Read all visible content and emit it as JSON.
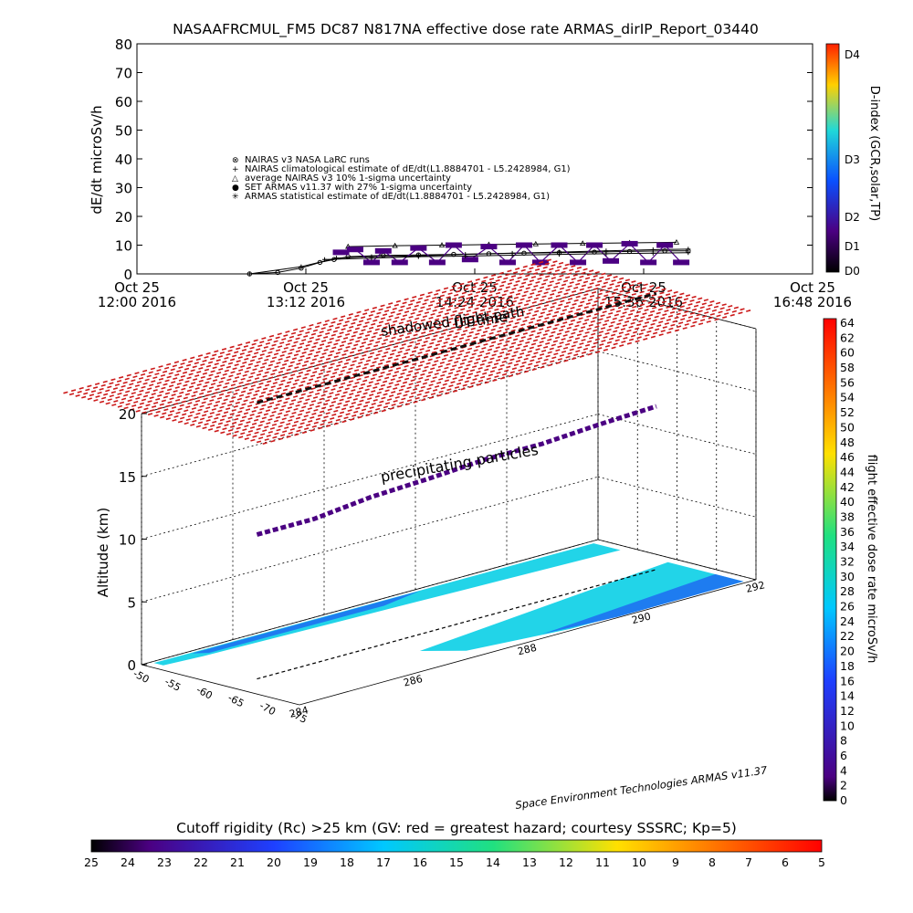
{
  "title": "NASAAFRCMUL_FM5 DC87 N817NA effective dose rate ARMAS_dirIP_Report_03440",
  "top_panel": {
    "ylabel": "dE/dt microSv/h",
    "right_label": "D-index (GCR,solar,TP)",
    "dindex_labels": [
      "D4",
      "D3",
      "D2",
      "D1",
      "D0"
    ],
    "legend": [
      {
        "symbol": "⊗",
        "text": "NAIRAS v3 NASA LaRC runs"
      },
      {
        "symbol": "+",
        "text": "NAIRAS climatological estimate of dE/dt(L1.8884701 - L5.2428984, G1)"
      },
      {
        "symbol": "△",
        "text": "average NAIRAS v3 10% 1-sigma uncertainty"
      },
      {
        "symbol": "●",
        "text": "SET ARMAS v11.37 with 27% 1-sigma uncertainty"
      },
      {
        "symbol": "✳",
        "text": "ARMAS statistical estimate of dE/dt(L1.8884701 - L5.2428984, G1)"
      }
    ],
    "time_ticks": [
      {
        "line1": "Oct 25",
        "line2": "12:00 2016"
      },
      {
        "line1": "Oct 25",
        "line2": "13:12 2016"
      },
      {
        "line1": "Oct 25",
        "line2": "14:24 2016"
      },
      {
        "line1": "Oct 25",
        "line2": "15:36 2016"
      },
      {
        "line1": "Oct 25",
        "line2": "16:48 2016"
      }
    ]
  },
  "bottom_panel": {
    "zlabel": "Altitude (km)",
    "right_label": "flight effective dose rate microSv/h",
    "annotations": {
      "shadowed": "shadowed flight path",
      "uttime": "UT time",
      "precip": "precipitating particles",
      "credit": "Space Environment Technologies ARMAS v11.37"
    },
    "cutoff_label": "Cutoff rigidity (Rc) >25 km (GV: red = greatest hazard; courtesy SSSRC; Kp=5)"
  },
  "chart_data": [
    {
      "type": "line",
      "title": "NASAAFRCMUL_FM5 DC87 N817NA effective dose rate ARMAS_dirIP_Report_03440",
      "ylabel": "dE/dt microSv/h",
      "right_ylabel": "D-index (GCR,solar,TP)",
      "ylim": [
        0,
        80
      ],
      "yticks": [
        0,
        10,
        20,
        30,
        40,
        50,
        60,
        70,
        80
      ],
      "x_unit": "UT time, 25 Oct 2016",
      "xlim": [
        "12:00",
        "16:48"
      ],
      "xticks": [
        "12:00",
        "13:12",
        "14:24",
        "15:36",
        "16:48"
      ],
      "series": [
        {
          "name": "NAIRAS climatological estimate of dE/dt(L1.8884701 - L5.2428984, G1)",
          "color": "#000000",
          "x": [
            "12:48",
            "13:00",
            "13:10",
            "13:18",
            "13:24",
            "13:30",
            "13:45",
            "14:00",
            "14:15",
            "14:30",
            "14:45",
            "15:00",
            "15:15",
            "15:30",
            "15:45",
            "15:55"
          ],
          "y": [
            0,
            0.5,
            2,
            4,
            5,
            6,
            6.4,
            6.6,
            6.8,
            7,
            7.2,
            7.4,
            7.6,
            7.8,
            8,
            8
          ]
        },
        {
          "name": "average NAIRAS v3 10% 1-sigma uncertainty",
          "color": "#000000",
          "x": [
            "12:48",
            "13:10",
            "13:25",
            "13:40",
            "14:00",
            "14:20",
            "14:40",
            "15:00",
            "15:20",
            "15:40",
            "15:55"
          ],
          "y": [
            0,
            2.5,
            5.5,
            6,
            6.3,
            6.8,
            7.2,
            7.6,
            8,
            8.4,
            8.6
          ]
        },
        {
          "name": "NAIRAS v3 NASA LaRC runs",
          "color": "#000000",
          "x": [
            "13:30",
            "13:50",
            "14:10",
            "14:30",
            "14:50",
            "15:10",
            "15:30",
            "15:50"
          ],
          "y": [
            9.5,
            9.8,
            10,
            10.2,
            10.4,
            10.6,
            10.8,
            11
          ]
        },
        {
          "name": "SET ARMAS v11.37 with 27% 1-sigma uncertainty",
          "color": "#4b0082",
          "x": [
            "13:27",
            "13:33",
            "13:40",
            "13:45",
            "13:52",
            "14:00",
            "14:08",
            "14:15",
            "14:22",
            "14:30",
            "14:38",
            "14:45",
            "14:52",
            "15:00",
            "15:08",
            "15:15",
            "15:22",
            "15:30",
            "15:38",
            "15:45",
            "15:52"
          ],
          "y": [
            7.5,
            8.5,
            4,
            8,
            4,
            9,
            4,
            10,
            5,
            9.5,
            4,
            10,
            4,
            10,
            4,
            10,
            4.5,
            10.5,
            4,
            10,
            4
          ]
        },
        {
          "name": "ARMAS statistical estimate of dE/dt(L1.8884701 - L5.2428984, G1)",
          "color": "#000000",
          "x": [
            "13:20",
            "13:40",
            "14:00",
            "14:20",
            "14:40",
            "15:00",
            "15:20",
            "15:40",
            "15:55"
          ],
          "y": [
            5,
            5.5,
            6,
            6.2,
            6.5,
            6.8,
            7,
            7.2,
            7.4
          ]
        }
      ],
      "dindex_colorbar": {
        "labels": [
          "D0",
          "D1",
          "D2",
          "D3",
          "D4"
        ],
        "colors": [
          "#000000",
          "#4b0082",
          "#0a50ff",
          "#20d8d8",
          "#ffd000",
          "#ff2000"
        ]
      }
    },
    {
      "type": "scatter",
      "subtype": "3d flight track",
      "zlabel": "Altitude (km)",
      "zlim": [
        0,
        20
      ],
      "zticks": [
        0,
        5,
        10,
        15,
        20
      ],
      "latitude_ticks": [
        -50,
        -55,
        -60,
        -65,
        -70,
        -75
      ],
      "longitude_ticks": [
        284,
        286,
        288,
        290,
        292
      ],
      "flight_track": {
        "altitude_km": [
          11.5,
          11.5,
          12,
          12.2,
          12.5,
          12.5,
          12.8,
          13
        ],
        "longitude": [
          284.5,
          285.5,
          286.5,
          287.5,
          288.5,
          289.5,
          290.5,
          291.5
        ]
      },
      "precipitating_particles_altitude_km": 20,
      "dose_colorbar": {
        "label": "flight effective dose rate microSv/h",
        "min": 0,
        "max": 64,
        "step": 2,
        "colors": [
          "#000000",
          "#4b0082",
          "#1e40ff",
          "#00c8ff",
          "#20e080",
          "#ffe000",
          "#ff7000",
          "#ff0000"
        ]
      },
      "cutoff_colorbar": {
        "label": "Cutoff rigidity (Rc) >25 km (GV: red = greatest hazard; courtesy SSSRC; Kp=5)",
        "ticks": [
          25,
          24,
          23,
          22,
          21,
          20,
          19,
          18,
          17,
          16,
          15,
          14,
          13,
          12,
          11,
          10,
          9,
          8,
          7,
          6,
          5
        ],
        "colors": [
          "#000000",
          "#4b0082",
          "#1e40ff",
          "#00c8ff",
          "#20e080",
          "#ffe000",
          "#ff7000",
          "#ff0000"
        ]
      }
    }
  ]
}
